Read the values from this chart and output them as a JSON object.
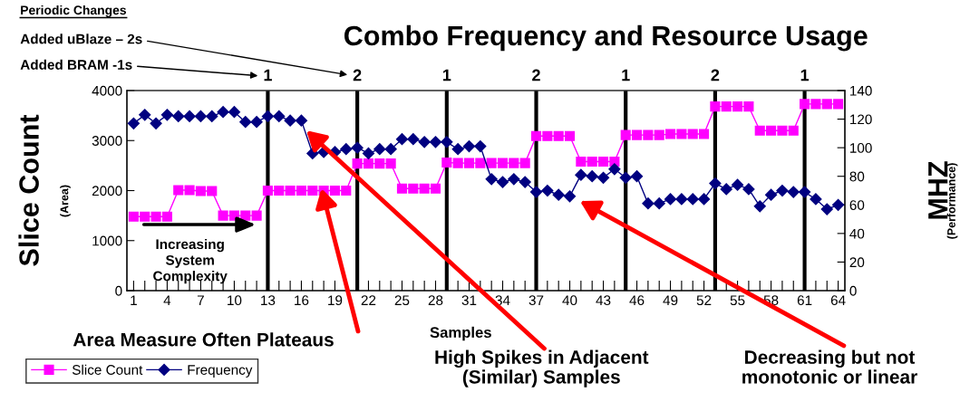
{
  "chart_data": {
    "type": "line",
    "title": "Combo Frequency and Resource Usage",
    "xlabel": "Samples",
    "ylabel": "Slice Count",
    "y2label": "MHZ",
    "x": [
      1,
      2,
      3,
      4,
      5,
      6,
      7,
      8,
      9,
      10,
      11,
      12,
      13,
      14,
      15,
      16,
      17,
      18,
      19,
      20,
      21,
      22,
      23,
      24,
      25,
      26,
      27,
      28,
      29,
      30,
      31,
      32,
      33,
      34,
      35,
      36,
      37,
      38,
      39,
      40,
      41,
      42,
      43,
      44,
      45,
      46,
      47,
      48,
      49,
      50,
      51,
      52,
      53,
      54,
      55,
      56,
      57,
      58,
      59,
      60,
      61,
      62,
      63,
      64
    ],
    "series": [
      {
        "name": "Slice Count",
        "color": "#ff00ff",
        "marker": "square",
        "values": [
          1480,
          1480,
          1480,
          1480,
          2010,
          2010,
          1990,
          1990,
          1500,
          1500,
          1500,
          1500,
          2000,
          2000,
          2000,
          2000,
          2000,
          2000,
          2000,
          2000,
          2540,
          2540,
          2540,
          2540,
          2040,
          2040,
          2040,
          2040,
          2560,
          2550,
          2550,
          2550,
          2550,
          2550,
          2550,
          2550,
          3090,
          3090,
          3090,
          3090,
          2580,
          2580,
          2580,
          2580,
          3110,
          3110,
          3110,
          3110,
          3130,
          3130,
          3130,
          3130,
          3680,
          3680,
          3680,
          3680,
          3200,
          3200,
          3200,
          3200,
          3730,
          3730,
          3730,
          3730
        ]
      },
      {
        "name": "Frequency",
        "color": "#000080",
        "marker": "diamond",
        "axis": "y2",
        "values": [
          117,
          123,
          117,
          123,
          122,
          122,
          122,
          122,
          125,
          125,
          118,
          118,
          122,
          122,
          119,
          119,
          96,
          97,
          97,
          99,
          100,
          96,
          99,
          99,
          106,
          106,
          104,
          104,
          104,
          99,
          101,
          101,
          78,
          76,
          78,
          76,
          69,
          70,
          67,
          66,
          81,
          80,
          79,
          85,
          79,
          80,
          61,
          61,
          64,
          64,
          64,
          64,
          75,
          71,
          74,
          71,
          59,
          67,
          70,
          69,
          69,
          64,
          57,
          60
        ]
      }
    ],
    "xlim": [
      0.4,
      64.6
    ],
    "xticks": [
      1,
      {
        "value": 2,
        "label": null
      },
      {
        "value": 3,
        "label": null
      },
      4,
      {
        "value": 5,
        "label": null
      },
      {
        "value": 6,
        "label": null
      },
      7,
      {
        "value": 8,
        "label": null
      },
      {
        "value": 9,
        "label": null
      },
      10,
      {
        "value": 11,
        "label": null
      },
      {
        "value": 12,
        "label": null
      },
      13,
      {
        "value": 14,
        "label": null
      },
      {
        "value": 15,
        "label": null
      },
      16,
      {
        "value": 17,
        "label": null
      },
      {
        "value": 18,
        "label": null
      },
      19,
      {
        "value": 20,
        "label": null
      },
      {
        "value": 21,
        "label": null
      },
      22,
      {
        "value": 23,
        "label": null
      },
      {
        "value": 24,
        "label": null
      },
      25,
      {
        "value": 26,
        "label": null
      },
      {
        "value": 27,
        "label": null
      },
      28,
      {
        "value": 29,
        "label": null
      },
      {
        "value": 30,
        "label": null
      },
      31,
      {
        "value": 32,
        "label": null
      },
      {
        "value": 33,
        "label": null
      },
      34,
      {
        "value": 35,
        "label": null
      },
      {
        "value": 36,
        "label": null
      },
      37,
      {
        "value": 38,
        "label": null
      },
      {
        "value": 39,
        "label": null
      },
      40,
      {
        "value": 41,
        "label": null
      },
      {
        "value": 42,
        "label": null
      },
      43,
      {
        "value": 44,
        "label": null
      },
      {
        "value": 45,
        "label": null
      },
      46,
      {
        "value": 47,
        "label": null
      },
      {
        "value": 48,
        "label": null
      },
      49,
      {
        "value": 50,
        "label": null
      },
      {
        "value": 51,
        "label": null
      },
      52,
      {
        "value": 53,
        "label": null
      },
      {
        "value": 54,
        "label": null
      },
      55,
      {
        "value": 56,
        "label": null
      },
      {
        "value": 57,
        "label": null
      },
      58,
      {
        "value": 59,
        "label": null
      },
      {
        "value": 60,
        "label": null
      },
      61,
      {
        "value": 62,
        "label": null
      },
      {
        "value": 63,
        "label": null
      },
      64
    ],
    "ylim": [
      0,
      4000
    ],
    "yticks": [
      0,
      1000,
      2000,
      3000,
      4000
    ],
    "y2lim": [
      0,
      140
    ],
    "y2ticks": [
      0,
      20,
      40,
      60,
      80,
      100,
      120,
      140
    ],
    "ref_lines": [
      {
        "axis": "x",
        "value": 13,
        "color": "#000000"
      },
      {
        "axis": "x",
        "value": 21,
        "color": "#000000"
      },
      {
        "axis": "x",
        "value": 29,
        "color": "#000000"
      },
      {
        "axis": "x",
        "value": 37,
        "color": "#000000"
      },
      {
        "axis": "x",
        "value": 45,
        "color": "#000000"
      },
      {
        "axis": "x",
        "value": 53,
        "color": "#000000"
      },
      {
        "axis": "x",
        "value": 61,
        "color": "#000000"
      }
    ],
    "annotations": [
      "Periodic Changes",
      "Added uBlaze – 2s",
      "Added BRAM -1s",
      "Increasing\nSystem\nComplexity",
      "Area Measure Often Plateaus",
      "High Spikes in Adjacent\n(Similar) Samples",
      "Decreasing but not\nmonotonic or linear",
      "(Area)",
      "(Performance)",
      "1",
      "2",
      "1",
      "2",
      "1",
      "2",
      "1"
    ],
    "grid": false,
    "legend": "bottom left"
  }
}
